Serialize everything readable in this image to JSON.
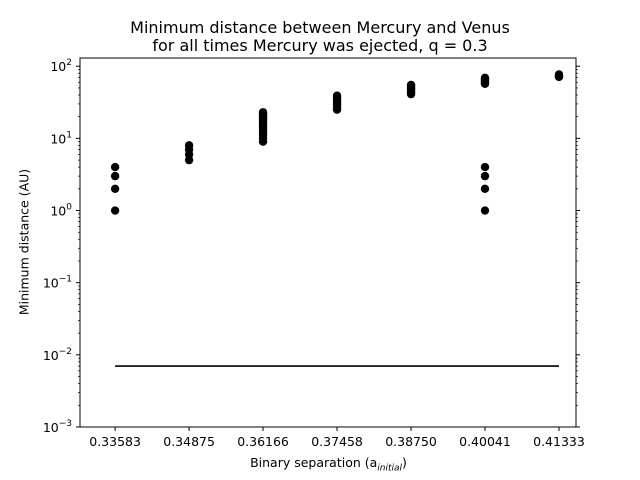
{
  "chart_data": {
    "type": "scatter",
    "title_line1": "Minimum distance between Mercury and Venus",
    "title_line2": "for all times Mercury was ejected, q = 0.3",
    "xlabel_main": "Binary separation (a",
    "xlabel_sub": "initial",
    "xlabel_close": ")",
    "ylabel": "Minimum distance (AU)",
    "yscale": "log",
    "ylim": [
      0.001,
      130
    ],
    "xlim": [
      0.3297,
      0.4163
    ],
    "x_ticks": [
      "0.33583",
      "0.34875",
      "0.36166",
      "0.37458",
      "0.38750",
      "0.40041",
      "0.41333"
    ],
    "y_ticks": [
      {
        "base": "10",
        "exp": "−3",
        "value": 0.001
      },
      {
        "base": "10",
        "exp": "−2",
        "value": 0.01
      },
      {
        "base": "10",
        "exp": "−1",
        "value": 0.1
      },
      {
        "base": "10",
        "exp": "0",
        "value": 1
      },
      {
        "base": "10",
        "exp": "1",
        "value": 10
      },
      {
        "base": "10",
        "exp": "2",
        "value": 100
      }
    ],
    "grid": false,
    "marker_color": "#000000",
    "points": [
      {
        "x": 0.33583,
        "y": [
          1,
          2,
          3,
          4
        ]
      },
      {
        "x": 0.34875,
        "y": [
          5,
          6,
          7,
          8
        ]
      },
      {
        "x": 0.36166,
        "y": [
          9,
          10,
          11,
          12,
          13,
          14,
          15,
          16,
          17,
          18,
          19,
          20,
          21,
          22,
          23
        ]
      },
      {
        "x": 0.37458,
        "y": [
          25,
          27,
          29,
          31,
          33,
          35,
          37,
          39
        ]
      },
      {
        "x": 0.3875,
        "y": [
          41,
          43,
          45,
          47,
          49,
          51,
          53,
          55
        ]
      },
      {
        "x": 0.40041,
        "y": [
          1,
          2,
          3,
          4,
          57,
          59,
          61,
          63,
          65,
          67,
          69
        ]
      },
      {
        "x": 0.41333,
        "y": [
          71,
          73,
          75,
          77
        ]
      }
    ],
    "reference_line": {
      "x_start": 0.33583,
      "x_end": 0.41333,
      "y": 0.007,
      "color": "#000000"
    }
  }
}
